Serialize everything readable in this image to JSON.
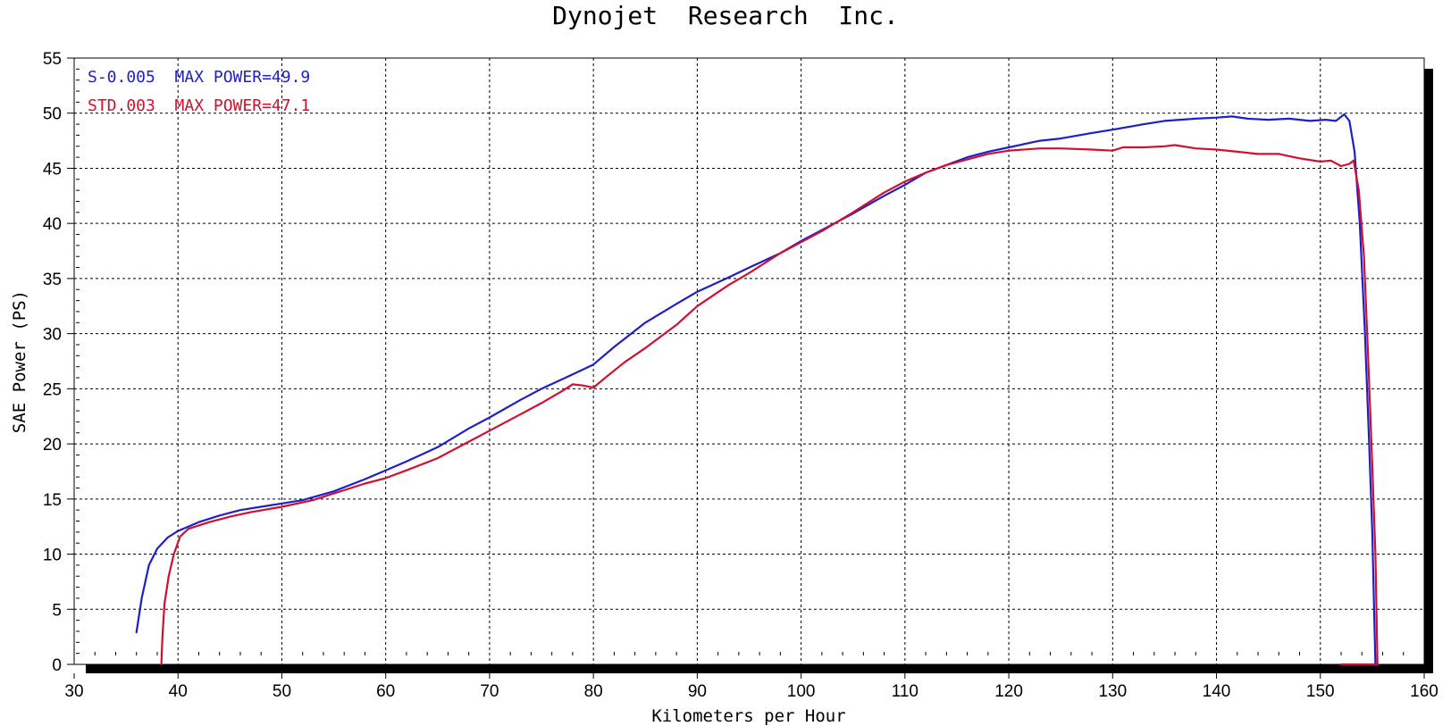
{
  "chart_data": {
    "type": "line",
    "title": "Dynojet  Research  Inc.",
    "xlabel": "Kilometers per Hour",
    "ylabel": "SAE Power (PS)",
    "xlim": [
      30,
      160
    ],
    "ylim": [
      0,
      55
    ],
    "x_ticks": [
      "30",
      "40",
      "50",
      "60",
      "70",
      "80",
      "90",
      "100",
      "110",
      "120",
      "130",
      "140",
      "150",
      "160"
    ],
    "y_ticks": [
      "0",
      "5",
      "10",
      "15",
      "20",
      "25",
      "30",
      "35",
      "40",
      "45",
      "50",
      "55"
    ],
    "grid": true,
    "legend_position": "top-left",
    "series": [
      {
        "name": "S-0.005  MAX POWER=49.9",
        "color": "#1f1fc8",
        "points": [
          [
            36.0,
            2.9
          ],
          [
            36.5,
            6.0
          ],
          [
            37.2,
            9.0
          ],
          [
            38.0,
            10.5
          ],
          [
            39.0,
            11.5
          ],
          [
            40.0,
            12.1
          ],
          [
            42.0,
            12.9
          ],
          [
            44.0,
            13.5
          ],
          [
            46.0,
            14.0
          ],
          [
            48.0,
            14.3
          ],
          [
            50.0,
            14.6
          ],
          [
            52.0,
            14.9
          ],
          [
            55.0,
            15.7
          ],
          [
            58.0,
            16.8
          ],
          [
            60.0,
            17.6
          ],
          [
            62.0,
            18.4
          ],
          [
            65.0,
            19.7
          ],
          [
            68.0,
            21.4
          ],
          [
            70.0,
            22.4
          ],
          [
            73.0,
            24.0
          ],
          [
            75.0,
            25.0
          ],
          [
            78.0,
            26.3
          ],
          [
            80.0,
            27.2
          ],
          [
            82.0,
            28.8
          ],
          [
            85.0,
            31.0
          ],
          [
            88.0,
            32.7
          ],
          [
            90.0,
            33.8
          ],
          [
            93.0,
            35.1
          ],
          [
            95.0,
            36.0
          ],
          [
            98.0,
            37.3
          ],
          [
            100.0,
            38.4
          ],
          [
            102.0,
            39.4
          ],
          [
            105.0,
            40.9
          ],
          [
            108.0,
            42.5
          ],
          [
            110.0,
            43.5
          ],
          [
            112.0,
            44.6
          ],
          [
            114.0,
            45.3
          ],
          [
            116.0,
            46.0
          ],
          [
            118.0,
            46.5
          ],
          [
            120.0,
            46.9
          ],
          [
            123.0,
            47.5
          ],
          [
            125.0,
            47.7
          ],
          [
            128.0,
            48.2
          ],
          [
            130.0,
            48.5
          ],
          [
            133.0,
            49.0
          ],
          [
            135.0,
            49.3
          ],
          [
            138.0,
            49.5
          ],
          [
            140.0,
            49.6
          ],
          [
            141.5,
            49.7
          ],
          [
            143.0,
            49.5
          ],
          [
            145.0,
            49.4
          ],
          [
            147.0,
            49.5
          ],
          [
            149.0,
            49.3
          ],
          [
            150.5,
            49.4
          ],
          [
            151.5,
            49.3
          ],
          [
            152.3,
            49.9
          ],
          [
            152.8,
            49.3
          ],
          [
            153.3,
            46.5
          ],
          [
            153.8,
            40.0
          ],
          [
            154.3,
            30.0
          ],
          [
            154.7,
            20.0
          ],
          [
            155.0,
            12.0
          ],
          [
            155.2,
            4.0
          ],
          [
            155.3,
            0.0
          ]
        ]
      },
      {
        "name": "STD.003  MAX POWER=47.1",
        "color": "#d01030",
        "points": [
          [
            38.4,
            0.0
          ],
          [
            38.5,
            2.5
          ],
          [
            38.7,
            5.5
          ],
          [
            39.1,
            8.0
          ],
          [
            39.6,
            10.0
          ],
          [
            40.2,
            11.6
          ],
          [
            41.0,
            12.3
          ],
          [
            43.0,
            12.9
          ],
          [
            45.0,
            13.4
          ],
          [
            47.0,
            13.8
          ],
          [
            50.0,
            14.3
          ],
          [
            53.0,
            14.9
          ],
          [
            55.0,
            15.5
          ],
          [
            58.0,
            16.4
          ],
          [
            60.0,
            16.9
          ],
          [
            62.0,
            17.6
          ],
          [
            65.0,
            18.7
          ],
          [
            68.0,
            20.2
          ],
          [
            70.0,
            21.2
          ],
          [
            73.0,
            22.7
          ],
          [
            75.0,
            23.7
          ],
          [
            77.0,
            24.8
          ],
          [
            78.0,
            25.4
          ],
          [
            79.0,
            25.3
          ],
          [
            80.0,
            25.1
          ],
          [
            81.0,
            25.9
          ],
          [
            83.0,
            27.4
          ],
          [
            85.0,
            28.7
          ],
          [
            88.0,
            30.8
          ],
          [
            90.0,
            32.5
          ],
          [
            93.0,
            34.4
          ],
          [
            95.0,
            35.5
          ],
          [
            98.0,
            37.3
          ],
          [
            100.0,
            38.3
          ],
          [
            102.0,
            39.3
          ],
          [
            105.0,
            41.0
          ],
          [
            108.0,
            42.8
          ],
          [
            110.0,
            43.8
          ],
          [
            112.0,
            44.6
          ],
          [
            114.0,
            45.3
          ],
          [
            116.0,
            45.8
          ],
          [
            118.0,
            46.3
          ],
          [
            120.0,
            46.6
          ],
          [
            123.0,
            46.8
          ],
          [
            125.0,
            46.8
          ],
          [
            128.0,
            46.7
          ],
          [
            130.0,
            46.6
          ],
          [
            131.0,
            46.9
          ],
          [
            133.0,
            46.9
          ],
          [
            135.0,
            47.0
          ],
          [
            136.0,
            47.1
          ],
          [
            138.0,
            46.8
          ],
          [
            140.0,
            46.7
          ],
          [
            142.0,
            46.5
          ],
          [
            144.0,
            46.3
          ],
          [
            146.0,
            46.3
          ],
          [
            148.0,
            45.9
          ],
          [
            150.0,
            45.6
          ],
          [
            151.0,
            45.7
          ],
          [
            152.0,
            45.2
          ],
          [
            152.8,
            45.4
          ],
          [
            153.2,
            45.7
          ],
          [
            153.7,
            43.0
          ],
          [
            154.2,
            37.0
          ],
          [
            154.6,
            28.0
          ],
          [
            155.0,
            18.0
          ],
          [
            155.3,
            10.0
          ],
          [
            155.5,
            0.0
          ],
          [
            154.0,
            0.0
          ],
          [
            152.0,
            0.0
          ]
        ]
      }
    ]
  }
}
